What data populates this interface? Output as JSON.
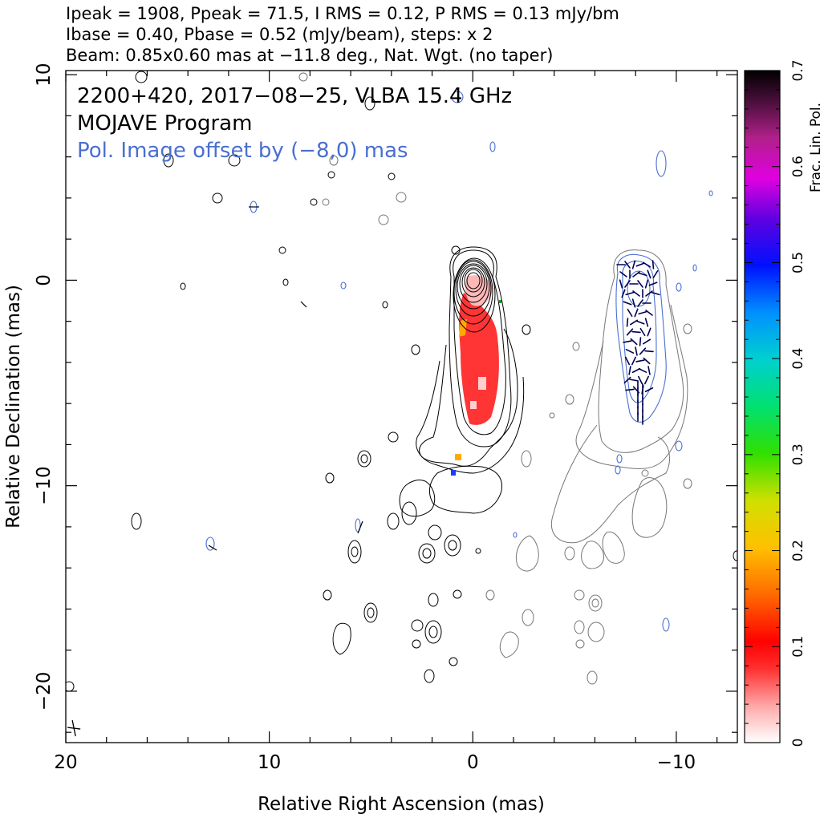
{
  "header": {
    "line1": "Ipeak = 1908, Ppeak = 71.5, I RMS = 0.12, P RMS = 0.13 mJy/bm",
    "line2": "Ibase = 0.40, Pbase = 0.52 (mJy/beam), steps: x 2",
    "line3": "Beam: 0.85x0.60 mas at −11.8 deg., Nat. Wgt. (no taper)"
  },
  "annotations": {
    "source_line": "2200+420, 2017−08−25, VLBA 15.4 GHz",
    "program_line": "MOJAVE Program",
    "offset_line": "Pol. Image offset by (−8,0) mas"
  },
  "colors": {
    "total_intensity_contours": "#000000",
    "offset_image_contours": "#7f7f7f",
    "pol_contours": "#4a6fd1",
    "evpa_ticks": "#00005a",
    "offset_text": "#4a6fd1"
  },
  "chart_data": {
    "type": "heatmap",
    "xlabel": "Relative Right Ascension (mas)",
    "ylabel": "Relative Declination (mas)",
    "xlim": [
      20,
      -13
    ],
    "ylim": [
      -22.5,
      10.2
    ],
    "x_ticks": [
      {
        "value": 20,
        "label": "20"
      },
      {
        "value": 10,
        "label": "10"
      },
      {
        "value": 0,
        "label": "0"
      },
      {
        "value": -10,
        "label": "−10"
      }
    ],
    "y_ticks": [
      {
        "value": 10,
        "label": "10"
      },
      {
        "value": 0,
        "label": "0"
      },
      {
        "value": -10,
        "label": "−10"
      },
      {
        "value": -20,
        "label": "−20"
      }
    ],
    "colorbar": {
      "label": "Frac. Lin. Pol.",
      "range": [
        0,
        0.7
      ],
      "ticks": [
        {
          "value": 0,
          "label": "0"
        },
        {
          "value": 0.1,
          "label": "0.1"
        },
        {
          "value": 0.2,
          "label": "0.2"
        },
        {
          "value": 0.3,
          "label": "0.3"
        },
        {
          "value": 0.4,
          "label": "0.4"
        },
        {
          "value": 0.5,
          "label": "0.5"
        },
        {
          "value": 0.6,
          "label": "0.6"
        },
        {
          "value": 0.7,
          "label": "0.7"
        }
      ]
    },
    "core_position": [
      0,
      0
    ],
    "beam_marker_position": [
      19.6,
      -21.8
    ],
    "pol_image_offset_ra": -8,
    "fractional_pol_regions": [
      {
        "ra": -0.2,
        "dec": -2.5,
        "frac": 0.08
      },
      {
        "ra": -0.4,
        "dec": -4.5,
        "frac": 0.09
      },
      {
        "ra": -0.4,
        "dec": -6.0,
        "frac": 0.08
      },
      {
        "ra": 0.4,
        "dec": -2.8,
        "frac": 0.16
      },
      {
        "ra": 0.9,
        "dec": -8.8,
        "frac": 0.22
      },
      {
        "ra": 1.0,
        "dec": -9.6,
        "frac": 0.52
      }
    ]
  }
}
